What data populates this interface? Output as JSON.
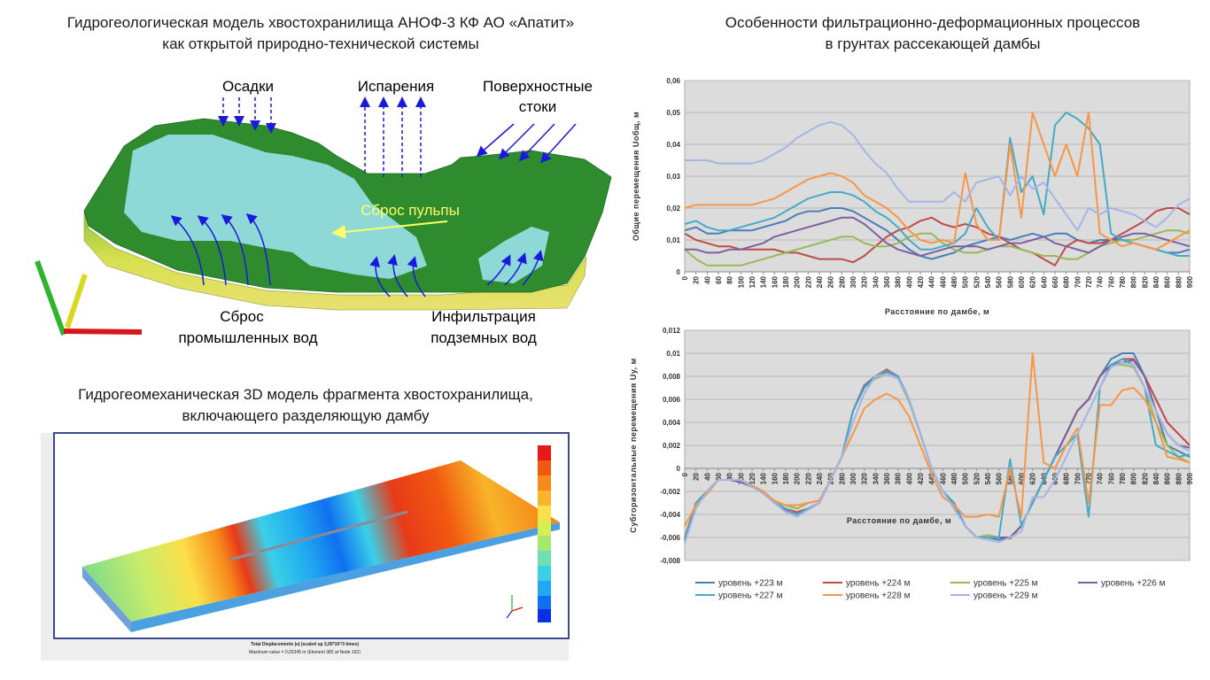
{
  "hydrogeological_model": {
    "title": [
      "Гидрогеологическая модель хвостохранилища АНОФ-3 КФ АО «Апатит»",
      "как открытой природно-технической системы"
    ],
    "labels": {
      "precipitation": "Осадки",
      "evaporation": "Испарения",
      "surface_runoff": [
        "Поверхностные",
        "стоки"
      ],
      "pulp_discharge": "Сброс пульпы",
      "industrial_discharge": [
        "Сброс",
        "промышленных вод"
      ],
      "groundwater_infiltration": [
        "Инфильтрация",
        "подземных вод"
      ]
    }
  },
  "geomechanical_model": {
    "title": [
      "Гидрогеомеханическая 3D модель фрагмента хвостохранилища,",
      "включающего разделяющую дамбу"
    ],
    "caption": "Total Displacements |u| (scaled up 2,00*10^3 times)",
    "max_value": "Maximum value = 0,02345 m (Element 382 at Node 162)"
  },
  "right_title": [
    "Особенности фильтрационно-деформационных процессов",
    "в грунтах рассекающей дамбы"
  ],
  "chart_data": [
    {
      "type": "line",
      "y_axis_label": "Общие перемещения Uобщ, м",
      "x_axis_label": "Расстояние по дамбе, м",
      "x": [
        0,
        20,
        40,
        60,
        80,
        100,
        120,
        140,
        160,
        180,
        200,
        220,
        240,
        260,
        280,
        300,
        320,
        340,
        360,
        380,
        400,
        420,
        440,
        460,
        480,
        500,
        520,
        540,
        560,
        580,
        600,
        620,
        640,
        660,
        680,
        700,
        720,
        740,
        760,
        780,
        800,
        820,
        840,
        860,
        880,
        900
      ],
      "xlim": [
        0,
        900
      ],
      "ylim": [
        0,
        0.06
      ],
      "yticks": [
        0,
        {
          "value": 0.01,
          "label": "0,01"
        },
        {
          "value": 0.02,
          "label": "0,02"
        },
        {
          "value": 0.03,
          "label": "0,03"
        },
        {
          "value": 0.04,
          "label": "0,04"
        },
        {
          "value": 0.05,
          "label": "0,05"
        },
        {
          "value": 0.06,
          "label": "0,06"
        }
      ],
      "grid": true,
      "series": [
        {
          "color": "#4a7ebb",
          "values": [
            0.013,
            0.014,
            0.012,
            0.012,
            0.013,
            0.013,
            0.013,
            0.014,
            0.015,
            0.016,
            0.018,
            0.019,
            0.019,
            0.02,
            0.02,
            0.019,
            0.017,
            0.015,
            0.013,
            0.01,
            0.007,
            0.005,
            0.004,
            0.005,
            0.006,
            0.008,
            0.009,
            0.01,
            0.011,
            0.01,
            0.011,
            0.012,
            0.011,
            0.012,
            0.012,
            0.01,
            0.009,
            0.01,
            0.01,
            0.01,
            0.009,
            0.008,
            0.007,
            0.006,
            0.006,
            0.007
          ]
        },
        {
          "color": "#be4b48",
          "values": [
            0.012,
            0.01,
            0.009,
            0.008,
            0.008,
            0.007,
            0.007,
            0.007,
            0.007,
            0.006,
            0.006,
            0.005,
            0.004,
            0.004,
            0.004,
            0.003,
            0.005,
            0.008,
            0.011,
            0.013,
            0.014,
            0.016,
            0.017,
            0.015,
            0.014,
            0.015,
            0.014,
            0.012,
            0.011,
            0.009,
            0.007,
            0.006,
            0.004,
            0.002,
            0.008,
            0.01,
            0.009,
            0.009,
            0.01,
            0.012,
            0.014,
            0.016,
            0.019,
            0.02,
            0.02,
            0.018
          ]
        },
        {
          "color": "#98b954",
          "values": [
            0.007,
            0.004,
            0.002,
            0.002,
            0.002,
            0.002,
            0.003,
            0.004,
            0.005,
            0.006,
            0.007,
            0.008,
            0.009,
            0.01,
            0.011,
            0.011,
            0.009,
            0.008,
            0.008,
            0.009,
            0.011,
            0.012,
            0.012,
            0.009,
            0.007,
            0.006,
            0.006,
            0.007,
            0.008,
            0.008,
            0.007,
            0.006,
            0.005,
            0.005,
            0.004,
            0.004,
            0.006,
            0.008,
            0.009,
            0.01,
            0.01,
            0.011,
            0.012,
            0.013,
            0.013,
            0.012
          ]
        },
        {
          "color": "#7d60a0",
          "values": [
            0.007,
            0.007,
            0.006,
            0.006,
            0.007,
            0.007,
            0.008,
            0.009,
            0.011,
            0.012,
            0.013,
            0.014,
            0.015,
            0.016,
            0.017,
            0.017,
            0.015,
            0.012,
            0.009,
            0.007,
            0.006,
            0.005,
            0.006,
            0.007,
            0.008,
            0.008,
            0.008,
            0.007,
            0.008,
            0.009,
            0.009,
            0.01,
            0.011,
            0.009,
            0.008,
            0.007,
            0.006,
            0.008,
            0.01,
            0.011,
            0.012,
            0.012,
            0.011,
            0.01,
            0.009,
            0.008
          ]
        },
        {
          "color": "#46aac5",
          "values": [
            0.015,
            0.016,
            0.014,
            0.013,
            0.013,
            0.014,
            0.015,
            0.016,
            0.017,
            0.019,
            0.021,
            0.023,
            0.024,
            0.025,
            0.025,
            0.024,
            0.022,
            0.019,
            0.017,
            0.014,
            0.01,
            0.007,
            0.007,
            0.008,
            0.009,
            0.012,
            0.02,
            0.014,
            0.01,
            0.042,
            0.025,
            0.03,
            0.018,
            0.046,
            0.05,
            0.048,
            0.045,
            0.04,
            0.012,
            0.01,
            0.009,
            0.008,
            0.007,
            0.006,
            0.005,
            0.005
          ]
        },
        {
          "color": "#f79646",
          "values": [
            0.02,
            0.021,
            0.021,
            0.021,
            0.021,
            0.021,
            0.021,
            0.022,
            0.023,
            0.025,
            0.027,
            0.029,
            0.03,
            0.031,
            0.03,
            0.028,
            0.024,
            0.022,
            0.02,
            0.017,
            0.013,
            0.01,
            0.009,
            0.01,
            0.009,
            0.031,
            0.015,
            0.01,
            0.01,
            0.04,
            0.017,
            0.05,
            0.04,
            0.03,
            0.04,
            0.03,
            0.05,
            0.012,
            0.01,
            0.008,
            0.009,
            0.008,
            0.007,
            0.009,
            0.011,
            0.013
          ]
        },
        {
          "color": "#a5b6e4",
          "values": [
            0.035,
            0.035,
            0.035,
            0.034,
            0.034,
            0.034,
            0.034,
            0.035,
            0.037,
            0.039,
            0.042,
            0.044,
            0.046,
            0.047,
            0.046,
            0.043,
            0.038,
            0.034,
            0.031,
            0.026,
            0.022,
            0.022,
            0.022,
            0.022,
            0.025,
            0.022,
            0.028,
            0.029,
            0.03,
            0.024,
            0.03,
            0.026,
            0.028,
            0.023,
            0.018,
            0.013,
            0.02,
            0.018,
            0.02,
            0.019,
            0.018,
            0.016,
            0.014,
            0.017,
            0.021,
            0.023
          ]
        }
      ]
    },
    {
      "type": "line",
      "y_axis_label": "Субгоризонтальные перемещения Uy, м",
      "x_axis_label": "Расстояние по дамбе, м",
      "x": [
        0,
        20,
        40,
        60,
        80,
        100,
        120,
        140,
        160,
        180,
        200,
        220,
        240,
        260,
        280,
        300,
        320,
        340,
        360,
        380,
        400,
        420,
        440,
        460,
        480,
        500,
        520,
        540,
        560,
        580,
        600,
        620,
        640,
        660,
        680,
        700,
        720,
        740,
        760,
        780,
        800,
        820,
        840,
        860,
        880,
        900
      ],
      "xlim": [
        0,
        900
      ],
      "ylim": [
        -0.008,
        0.012
      ],
      "yticks": [
        {
          "value": -0.008,
          "label": "-0,008"
        },
        {
          "value": -0.006,
          "label": "-0,006"
        },
        {
          "value": -0.004,
          "label": "-0,004"
        },
        {
          "value": -0.002,
          "label": "-0,002"
        },
        0,
        {
          "value": 0.002,
          "label": "0,002"
        },
        {
          "value": 0.004,
          "label": "0,004"
        },
        {
          "value": 0.006,
          "label": "0,006"
        },
        {
          "value": 0.008,
          "label": "0,008"
        },
        {
          "value": 0.01,
          "label": "0,01"
        },
        {
          "value": 0.012,
          "label": "0,012"
        }
      ],
      "grid": true,
      "legend": "bottom",
      "series": [
        {
          "name": "уровень +223 м",
          "color": "#4a7ebb",
          "values": [
            -0.0063,
            -0.003,
            -0.002,
            -0.001,
            -0.001,
            -0.001,
            -0.0015,
            -0.002,
            -0.003,
            -0.0035,
            -0.004,
            -0.0035,
            -0.003,
            -0.001,
            0.001,
            0.005,
            0.0072,
            0.008,
            0.0085,
            0.008,
            0.006,
            0.003,
            0,
            -0.002,
            -0.003,
            -0.005,
            -0.006,
            -0.006,
            -0.0062,
            -0.006,
            -0.005,
            -0.003,
            -0.001,
            0.001,
            0.003,
            0.005,
            0.006,
            0.008,
            0.0095,
            0.01,
            0.01,
            0.008,
            0.005,
            0.002,
            0.0015,
            0.001
          ]
        },
        {
          "name": "уровень +224 м",
          "color": "#be4b48",
          "values": [
            -0.006,
            -0.003,
            -0.002,
            -0.001,
            -0.001,
            -0.001,
            -0.0015,
            -0.002,
            -0.003,
            -0.0035,
            -0.0038,
            -0.0035,
            -0.003,
            -0.001,
            0.001,
            0.005,
            0.0072,
            0.008,
            0.0086,
            0.008,
            0.006,
            0.003,
            0,
            -0.002,
            -0.003,
            -0.005,
            -0.006,
            -0.006,
            -0.006,
            -0.0061,
            -0.005,
            -0.003,
            -0.001,
            0.001,
            0.003,
            0.005,
            0.006,
            0.008,
            0.009,
            0.0095,
            0.0095,
            0.008,
            0.006,
            0.004,
            0.003,
            0.002
          ]
        },
        {
          "name": "уровень +225 м",
          "color": "#98b954",
          "values": [
            -0.006,
            -0.0032,
            -0.002,
            -0.001,
            -0.001,
            -0.001,
            -0.0016,
            -0.002,
            -0.003,
            -0.0032,
            -0.0035,
            -0.003,
            -0.0028,
            -0.001,
            0.001,
            0.005,
            0.007,
            0.0078,
            0.0082,
            0.0078,
            0.0058,
            0.003,
            0,
            -0.002,
            -0.0032,
            -0.005,
            -0.006,
            -0.0058,
            -0.006,
            -0.006,
            -0.005,
            -0.003,
            -0.001,
            0.001,
            0.003,
            0.005,
            0.006,
            0.008,
            0.009,
            0.009,
            0.0088,
            0.007,
            0.004,
            0.002,
            0.001,
            0.0005
          ]
        },
        {
          "name": "уровень +226 м",
          "color": "#7d60a0",
          "values": [
            -0.0062,
            -0.003,
            -0.002,
            -0.001,
            -0.001,
            -0.0012,
            -0.0016,
            -0.002,
            -0.003,
            -0.0036,
            -0.004,
            -0.0036,
            -0.003,
            -0.001,
            0.001,
            0.005,
            0.0072,
            0.008,
            0.0084,
            0.008,
            0.006,
            0.003,
            0,
            -0.002,
            -0.003,
            -0.005,
            -0.006,
            -0.006,
            -0.006,
            -0.006,
            -0.005,
            -0.003,
            -0.001,
            0.001,
            0.003,
            0.005,
            0.006,
            0.008,
            0.009,
            0.0092,
            0.0094,
            0.008,
            0.005,
            0.003,
            0.002,
            0.0018
          ]
        },
        {
          "name": "уровень +227 м",
          "color": "#46aac5",
          "values": [
            -0.0063,
            -0.003,
            -0.002,
            -0.001,
            -0.001,
            -0.001,
            -0.0015,
            -0.002,
            -0.003,
            -0.0035,
            -0.004,
            -0.0035,
            -0.003,
            -0.001,
            0.001,
            0.005,
            0.007,
            0.008,
            0.0085,
            0.008,
            0.006,
            0.003,
            0,
            -0.002,
            -0.003,
            -0.005,
            -0.006,
            -0.006,
            -0.006,
            0.0008,
            -0.005,
            -0.003,
            -0.001,
            0.001,
            0.002,
            0.003,
            -0.0042,
            0.007,
            0.009,
            0.0095,
            0.009,
            0.007,
            0.002,
            0.0015,
            0.001,
            0.0012
          ]
        },
        {
          "name": "уровень +228 м",
          "color": "#f79646",
          "values": [
            -0.005,
            -0.0032,
            -0.0022,
            -0.001,
            -0.001,
            -0.001,
            -0.0015,
            -0.002,
            -0.0028,
            -0.0032,
            -0.0032,
            -0.003,
            -0.0028,
            -0.001,
            0.001,
            0.003,
            0.0052,
            0.006,
            0.0065,
            0.006,
            0.0045,
            0.002,
            -0.0005,
            -0.0025,
            -0.0032,
            -0.0042,
            -0.0042,
            -0.004,
            -0.0042,
            0,
            -0.0042,
            0.01,
            0.0005,
            0,
            0.002,
            0.0035,
            -0.003,
            0.0055,
            0.0055,
            0.0068,
            0.007,
            0.006,
            0.004,
            0.001,
            0.0008,
            0.0005
          ]
        },
        {
          "name": "уровень +229 м",
          "color": "#a5b6e4",
          "values": [
            -0.0065,
            -0.0035,
            -0.002,
            -0.001,
            -0.001,
            -0.001,
            -0.0016,
            -0.0022,
            -0.003,
            -0.0038,
            -0.0042,
            -0.0036,
            -0.003,
            -0.001,
            0.001,
            0.004,
            0.0065,
            0.008,
            0.0082,
            0.0078,
            0.006,
            0.003,
            0,
            -0.002,
            -0.0035,
            -0.005,
            -0.006,
            -0.0062,
            -0.0064,
            -0.006,
            -0.0055,
            -0.0025,
            -0.0025,
            -0.001,
            0.001,
            0.003,
            0.005,
            0.007,
            0.0088,
            0.0092,
            0.009,
            0.007,
            0.005,
            0.003,
            0.002,
            0.0015
          ]
        }
      ]
    }
  ]
}
